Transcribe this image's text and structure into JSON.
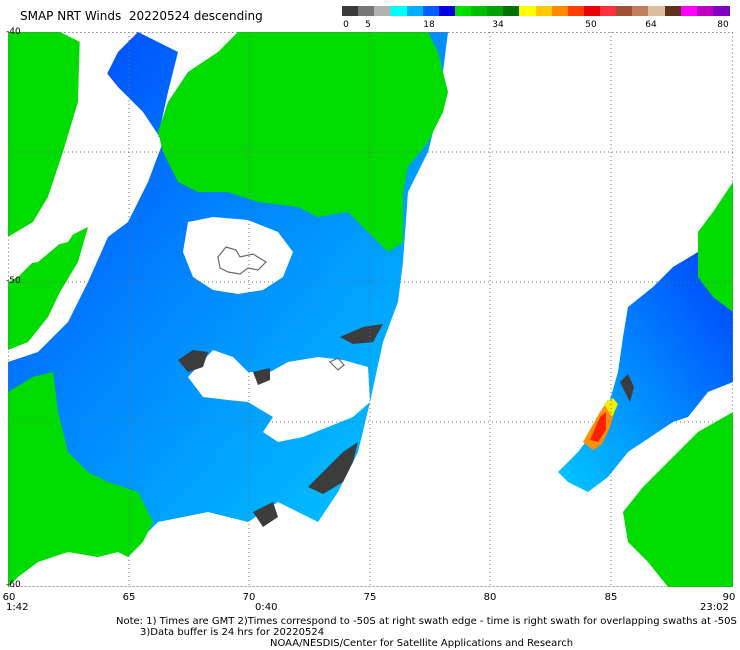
{
  "title": "SMAP NRT Winds  20220524 descending",
  "colorbar": {
    "segments": [
      {
        "color": "#3a3a3a"
      },
      {
        "color": "#777777"
      },
      {
        "color": "#b2b2b2"
      },
      {
        "color": "#00ffff"
      },
      {
        "color": "#00b0ff"
      },
      {
        "color": "#0060ff"
      },
      {
        "color": "#0000e0"
      },
      {
        "color": "#00e000"
      },
      {
        "color": "#00c000"
      },
      {
        "color": "#00a000"
      },
      {
        "color": "#007000"
      },
      {
        "color": "#ffff00"
      },
      {
        "color": "#ffc800"
      },
      {
        "color": "#ff8c00"
      },
      {
        "color": "#ff4000"
      },
      {
        "color": "#e60000"
      },
      {
        "color": "#ff3040"
      },
      {
        "color": "#a05030"
      },
      {
        "color": "#c08060"
      },
      {
        "color": "#dcc0a0"
      },
      {
        "color": "#603020"
      },
      {
        "color": "#ff00ff"
      },
      {
        "color": "#c000c0"
      },
      {
        "color": "#8000c0"
      }
    ],
    "ticks": [
      "0",
      "5",
      "18",
      "34",
      "50",
      "64",
      "80"
    ]
  },
  "axes": {
    "lat_labels": [
      "-40",
      "-50",
      "-60"
    ],
    "lon_labels": [
      "60",
      "65",
      "70",
      "75",
      "80",
      "85",
      "90"
    ],
    "time_labels": [
      "1:42",
      "0:40",
      "23:02"
    ]
  },
  "notes": {
    "line1": "Note: 1) Times are GMT 2)Times correspond to -50S at right swath edge - time is right swath for overlapping swaths at -50S",
    "line2": "3)Data buffer is 24 hrs for 20220524",
    "line3": "NOAA/NESDIS/Center for Satellite Applications and Research"
  },
  "map_colors": {
    "green": "#00dc00",
    "blue": "#0033ff",
    "mid_blue": "#0088ff",
    "light_blue": "#00ccff",
    "dark_gray": "#3c3c3c",
    "grid": "#6f6f6f",
    "red": "#ff2000",
    "orange": "#ff9000",
    "yellow": "#f0f000",
    "land_outline": "#6a6a6a"
  }
}
